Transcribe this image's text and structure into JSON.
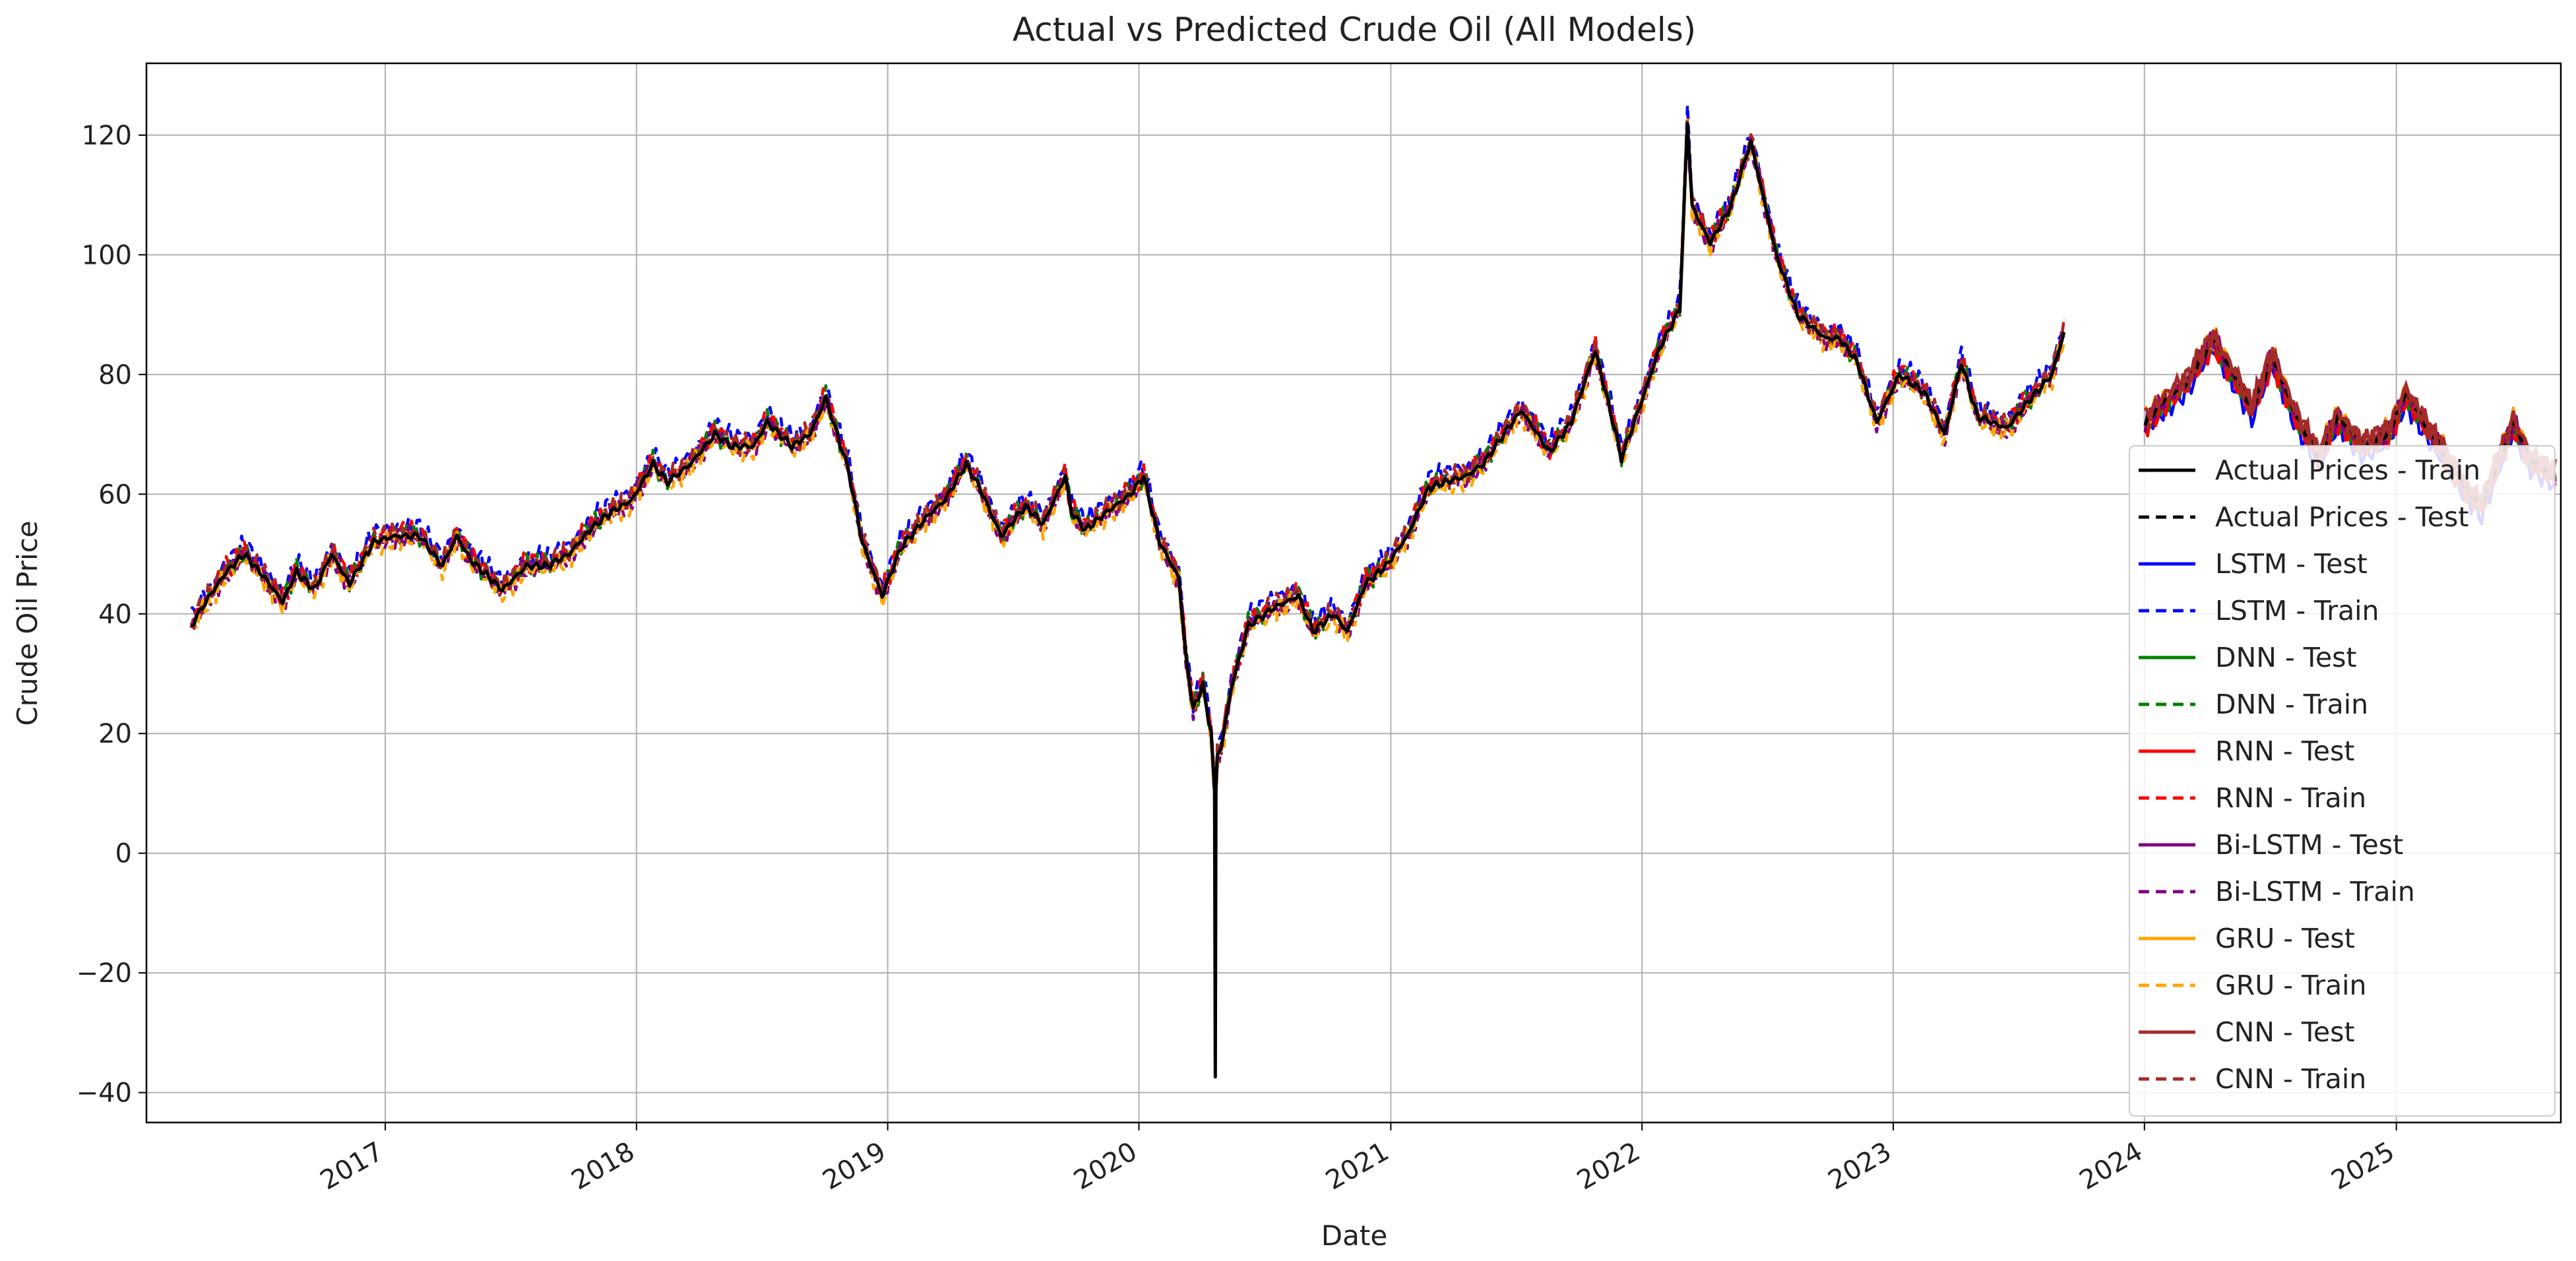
{
  "chart_data": {
    "type": "line",
    "title": "Actual vs Predicted Crude Oil (All Models)",
    "xlabel": "Date",
    "ylabel": "Crude Oil Price",
    "x_range": [
      "2016-01-20",
      "2025-08-28"
    ],
    "ylim": [
      -45,
      132
    ],
    "x_ticks": [
      "2017",
      "2018",
      "2019",
      "2020",
      "2021",
      "2022",
      "2023",
      "2024",
      "2025"
    ],
    "y_ticks": [
      "−40",
      "−20",
      "0",
      "20",
      "40",
      "60",
      "80",
      "100",
      "120"
    ],
    "grid": true,
    "legend_position": "right",
    "actual_train": {
      "x": [
        "2016-03-25",
        "2016-04-15",
        "2016-05-15",
        "2016-06-10",
        "2016-07-10",
        "2016-08-05",
        "2016-08-25",
        "2016-09-20",
        "2016-10-15",
        "2016-11-10",
        "2016-12-15",
        "2017-01-15",
        "2017-02-20",
        "2017-03-25",
        "2017-04-15",
        "2017-05-05",
        "2017-06-20",
        "2017-07-25",
        "2017-08-25",
        "2017-09-25",
        "2017-10-25",
        "2017-11-25",
        "2017-12-25",
        "2018-01-25",
        "2018-02-15",
        "2018-03-20",
        "2018-04-25",
        "2018-05-20",
        "2018-06-20",
        "2018-07-10",
        "2018-08-15",
        "2018-09-10",
        "2018-10-03",
        "2018-11-05",
        "2018-11-25",
        "2018-12-24",
        "2019-01-20",
        "2019-02-25",
        "2019-03-25",
        "2019-04-25",
        "2019-05-15",
        "2019-06-15",
        "2019-07-20",
        "2019-08-15",
        "2019-09-16",
        "2019-09-25",
        "2019-10-15",
        "2019-11-15",
        "2019-12-20",
        "2020-01-08",
        "2020-01-31",
        "2020-02-28",
        "2020-03-10",
        "2020-03-20",
        "2020-04-03",
        "2020-04-15",
        "2020-04-20",
        "2020-04-21",
        "2020-04-22",
        "2020-04-24",
        "2020-04-30",
        "2020-05-15",
        "2020-06-08",
        "2020-07-15",
        "2020-08-20",
        "2020-09-10",
        "2020-10-10",
        "2020-10-30",
        "2020-11-25",
        "2020-12-25",
        "2021-01-25",
        "2021-02-25",
        "2021-03-20",
        "2021-04-20",
        "2021-05-15",
        "2021-06-20",
        "2021-07-10",
        "2021-08-20",
        "2021-09-20",
        "2021-10-25",
        "2021-11-20",
        "2021-12-02",
        "2021-12-30",
        "2022-01-25",
        "2022-02-25",
        "2022-03-08",
        "2022-03-15",
        "2022-04-10",
        "2022-05-10",
        "2022-06-08",
        "2022-07-15",
        "2022-08-15",
        "2022-09-25",
        "2022-10-15",
        "2022-11-10",
        "2022-12-08",
        "2023-01-10",
        "2023-02-15",
        "2023-03-17",
        "2023-04-10",
        "2023-05-03",
        "2023-06-15",
        "2023-07-20",
        "2023-08-20",
        "2023-09-06"
      ],
      "y": [
        38,
        42,
        47,
        50,
        46,
        42,
        47,
        44,
        50,
        45,
        52,
        53,
        53,
        48,
        53,
        49,
        44,
        48,
        48,
        50,
        54,
        57,
        59,
        65,
        62,
        65,
        70,
        68,
        68,
        72,
        68,
        70,
        76,
        64,
        52,
        43,
        51,
        56,
        59,
        65,
        61,
        53,
        58,
        55,
        63,
        57,
        54,
        57,
        60,
        63,
        52,
        46,
        32,
        24,
        28,
        20,
        10,
        -37,
        11,
        16,
        18,
        28,
        38,
        41,
        43,
        37,
        40,
        37,
        45,
        48,
        53,
        61,
        62,
        63,
        65,
        71,
        74,
        67,
        72,
        84,
        72,
        66,
        75,
        84,
        91,
        122,
        108,
        102,
        108,
        119,
        100,
        90,
        86,
        86,
        82,
        72,
        80,
        77,
        70,
        82,
        73,
        71,
        76,
        80,
        87
      ]
    },
    "actual_test": {
      "x": [
        "2024-01-02",
        "2024-02-01",
        "2024-03-05",
        "2024-04-10",
        "2024-05-20",
        "2024-06-05",
        "2024-07-05",
        "2024-08-05",
        "2024-09-10",
        "2024-10-08",
        "2024-11-15",
        "2024-12-20",
        "2025-01-15",
        "2025-02-15",
        "2025-03-10",
        "2025-04-08",
        "2025-05-05",
        "2025-06-20",
        "2025-07-15",
        "2025-08-20"
      ],
      "y": [
        72,
        76,
        79,
        86,
        78,
        74,
        83,
        74,
        66,
        73,
        68,
        70,
        77,
        71,
        67,
        62,
        58,
        72,
        66,
        63
      ]
    },
    "series": [
      {
        "name": "Actual Prices - Train",
        "color": "#000000",
        "style": "solid"
      },
      {
        "name": "Actual Prices - Test",
        "color": "#000000",
        "style": "dashed"
      },
      {
        "name": "LSTM - Test",
        "color": "#0000ff",
        "style": "solid"
      },
      {
        "name": "LSTM - Train",
        "color": "#0000ff",
        "style": "dashed"
      },
      {
        "name": "DNN - Test",
        "color": "#008000",
        "style": "solid"
      },
      {
        "name": "DNN - Train",
        "color": "#008000",
        "style": "dashed"
      },
      {
        "name": "RNN - Test",
        "color": "#ff0000",
        "style": "solid"
      },
      {
        "name": "RNN - Train",
        "color": "#ff0000",
        "style": "dashed"
      },
      {
        "name": "Bi-LSTM - Test",
        "color": "#800080",
        "style": "solid"
      },
      {
        "name": "Bi-LSTM - Train",
        "color": "#800080",
        "style": "dashed"
      },
      {
        "name": "GRU - Test",
        "color": "#ffa500",
        "style": "solid"
      },
      {
        "name": "GRU - Train",
        "color": "#ffa500",
        "style": "dashed"
      },
      {
        "name": "CNN - Test",
        "color": "#a52a2a",
        "style": "solid"
      },
      {
        "name": "CNN - Train",
        "color": "#a52a2a",
        "style": "dashed"
      }
    ]
  }
}
